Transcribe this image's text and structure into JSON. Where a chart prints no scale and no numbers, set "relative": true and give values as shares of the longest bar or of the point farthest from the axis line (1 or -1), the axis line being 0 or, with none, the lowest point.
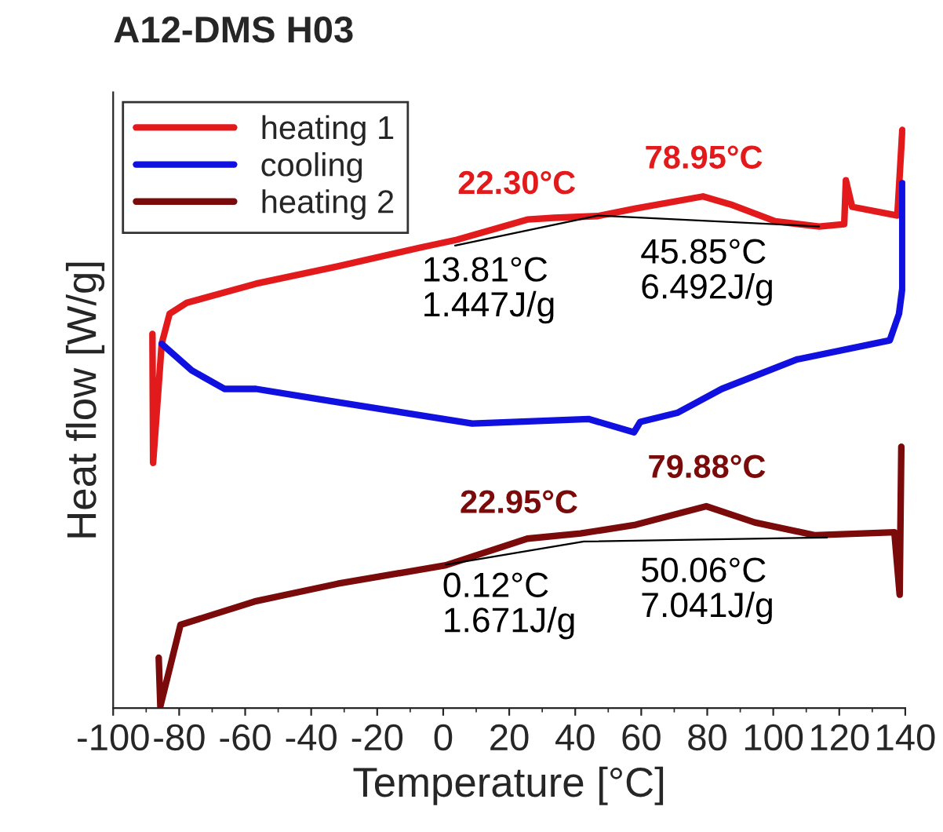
{
  "chart_data": {
    "type": "line",
    "title": "A12-DMS H03",
    "xlabel": "Temperature [°C]",
    "ylabel": "Heat flow [W/g]",
    "relative": true,
    "xlim": [
      -100,
      140
    ],
    "xticks": [
      -100,
      -80,
      -60,
      -40,
      -20,
      0,
      20,
      40,
      60,
      80,
      100,
      120,
      140
    ],
    "legend": "top left",
    "grid": false,
    "marker": "none",
    "line_style": "solid",
    "series": [
      {
        "name": "heating 1",
        "color": "#e31a1c",
        "x": [
          -88.1,
          -87.9,
          -85.3,
          -82.9,
          -77.7,
          -56.7,
          -32.0,
          -7.3,
          4.1,
          25.5,
          33.6,
          46.9,
          58.3,
          78.7,
          87.7,
          100.6,
          113.9,
          121.5,
          122.0,
          123.9,
          137.6,
          139.1
        ],
        "values": [
          0.647,
          0.424,
          0.63,
          0.682,
          0.701,
          0.734,
          0.764,
          0.796,
          0.81,
          0.845,
          0.848,
          0.851,
          0.864,
          0.885,
          0.87,
          0.842,
          0.833,
          0.837,
          0.913,
          0.867,
          0.852,
          1.0
        ]
      },
      {
        "name": "cooling",
        "color": "#1010e0",
        "x": [
          -85.3,
          -76.2,
          -66.3,
          -56.7,
          -32.0,
          8.8,
          44.0,
          57.8,
          59.7,
          71.1,
          84.4,
          107.2,
          135.3,
          138.1,
          139.1,
          139.1
        ],
        "values": [
          0.63,
          0.584,
          0.552,
          0.552,
          0.529,
          0.492,
          0.5,
          0.477,
          0.495,
          0.511,
          0.552,
          0.603,
          0.636,
          0.682,
          0.726,
          0.908
        ]
      },
      {
        "name": "heating 2",
        "color": "#7b0a0a",
        "x": [
          -86.2,
          -85.7,
          -79.6,
          -56.7,
          -32.0,
          0.8,
          25.5,
          41.6,
          58.3,
          79.7,
          94.4,
          112.5,
          136.7,
          138.3,
          138.8
        ],
        "values": [
          0.087,
          0.003,
          0.144,
          0.185,
          0.215,
          0.247,
          0.293,
          0.302,
          0.317,
          0.349,
          0.321,
          0.299,
          0.304,
          0.196,
          0.452
        ]
      },
      {
        "color": "#000000",
        "x": [
          3.6,
          46.9,
          113.9
        ],
        "values": [
          0.8,
          0.852,
          0.833
        ]
      },
      {
        "color": "#000000",
        "x": [
          0.8,
          42.6,
          116.3
        ],
        "values": [
          0.248,
          0.288,
          0.295
        ]
      }
    ],
    "annotations": [
      {
        "text": "22.30°C",
        "x": 22.3,
        "y": 0.84
      },
      {
        "text": "78.95°C",
        "x": 78.95,
        "y": 0.884
      },
      {
        "text": "13.81°C\n1.447J/g",
        "x": 13.81,
        "y": 0.812
      },
      {
        "text": "45.85°C\n6.492J/g",
        "x": 80.0,
        "y": 0.843
      },
      {
        "text": "22.95°C",
        "x": 22.95,
        "y": 0.288
      },
      {
        "text": "79.88°C",
        "x": 79.88,
        "y": 0.349
      },
      {
        "text": "0.12°C\n1.671J/g",
        "x": 20.0,
        "y": 0.266
      },
      {
        "text": "50.06°C\n7.041J/g",
        "x": 80.0,
        "y": 0.292
      }
    ]
  }
}
